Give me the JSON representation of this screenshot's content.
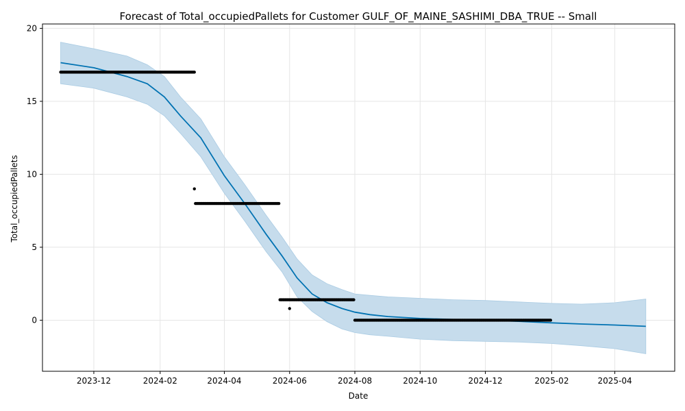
{
  "chart_data": {
    "type": "line",
    "title": "Forecast of Total_occupiedPallets for Customer GULF_OF_MAINE_SASHIMI_DBA_TRUE -- Small",
    "xlabel": "Date",
    "ylabel": "Total_occupiedPallets",
    "x_axis": "date",
    "xlim": [
      "2023-10-14",
      "2025-05-27"
    ],
    "ylim": [
      -3.5,
      20.3
    ],
    "x_ticks": [
      "2023-12-01",
      "2024-02-01",
      "2024-04-01",
      "2024-06-01",
      "2024-08-01",
      "2024-10-01",
      "2024-12-01",
      "2025-02-01",
      "2025-04-01"
    ],
    "x_tick_labels": [
      "2023-12",
      "2024-02",
      "2024-04",
      "2024-06",
      "2024-08",
      "2024-10",
      "2024-12",
      "2025-02",
      "2025-04"
    ],
    "y_ticks": [
      0,
      5,
      10,
      15,
      20
    ],
    "y_tick_labels": [
      "0",
      "5",
      "10",
      "15",
      "20"
    ],
    "grid": true,
    "legend": "none",
    "colors": {
      "forecast": "#0072B2",
      "interval": "#c6dcec",
      "interval_edge": "#a9cbe3",
      "actual": "#000000",
      "grid": "#e5e5e5"
    },
    "series": [
      {
        "kind": "forecast",
        "points": [
          [
            "2023-10-31",
            17.65
          ],
          [
            "2023-12-01",
            17.3
          ],
          [
            "2024-01-01",
            16.7
          ],
          [
            "2024-01-20",
            16.2
          ],
          [
            "2024-02-05",
            15.3
          ],
          [
            "2024-02-20",
            14.0
          ],
          [
            "2024-03-10",
            12.5
          ],
          [
            "2024-04-01",
            9.9
          ],
          [
            "2024-04-20",
            8.0
          ],
          [
            "2024-05-10",
            5.9
          ],
          [
            "2024-05-25",
            4.4
          ],
          [
            "2024-06-08",
            2.9
          ],
          [
            "2024-06-22",
            1.8
          ],
          [
            "2024-07-06",
            1.2
          ],
          [
            "2024-07-20",
            0.8
          ],
          [
            "2024-08-01",
            0.55
          ],
          [
            "2024-08-15",
            0.38
          ],
          [
            "2024-09-01",
            0.25
          ],
          [
            "2024-10-01",
            0.12
          ],
          [
            "2024-11-01",
            0.05
          ],
          [
            "2024-12-01",
            0.0
          ],
          [
            "2025-01-01",
            -0.08
          ],
          [
            "2025-02-01",
            -0.18
          ],
          [
            "2025-03-01",
            -0.26
          ],
          [
            "2025-04-01",
            -0.33
          ],
          [
            "2025-04-30",
            -0.42
          ]
        ]
      },
      {
        "kind": "uncertainty_interval",
        "points": [
          [
            "2023-10-31",
            16.2,
            19.05
          ],
          [
            "2023-12-01",
            15.9,
            18.6
          ],
          [
            "2024-01-01",
            15.3,
            18.1
          ],
          [
            "2024-01-20",
            14.8,
            17.5
          ],
          [
            "2024-02-05",
            14.0,
            16.7
          ],
          [
            "2024-02-20",
            12.8,
            15.3
          ],
          [
            "2024-03-10",
            11.2,
            13.8
          ],
          [
            "2024-04-01",
            8.7,
            11.2
          ],
          [
            "2024-04-20",
            6.8,
            9.3
          ],
          [
            "2024-05-10",
            4.7,
            7.2
          ],
          [
            "2024-05-25",
            3.3,
            5.7
          ],
          [
            "2024-06-08",
            1.6,
            4.2
          ],
          [
            "2024-06-22",
            0.6,
            3.1
          ],
          [
            "2024-07-06",
            -0.1,
            2.5
          ],
          [
            "2024-07-20",
            -0.6,
            2.1
          ],
          [
            "2024-08-01",
            -0.85,
            1.8
          ],
          [
            "2024-08-15",
            -1.0,
            1.7
          ],
          [
            "2024-09-01",
            -1.1,
            1.6
          ],
          [
            "2024-10-01",
            -1.3,
            1.5
          ],
          [
            "2024-11-01",
            -1.4,
            1.4
          ],
          [
            "2024-12-01",
            -1.45,
            1.35
          ],
          [
            "2025-01-01",
            -1.5,
            1.25
          ],
          [
            "2025-02-01",
            -1.6,
            1.15
          ],
          [
            "2025-03-01",
            -1.75,
            1.1
          ],
          [
            "2025-04-01",
            -1.95,
            1.2
          ],
          [
            "2025-04-30",
            -2.3,
            1.45
          ]
        ]
      },
      {
        "kind": "actual",
        "ranges": [
          {
            "start": "2023-10-31",
            "end": "2024-03-04",
            "y": 17.0
          },
          {
            "start": "2024-03-05",
            "end": "2024-05-22",
            "y": 8.0
          },
          {
            "start": "2024-05-23",
            "end": "2024-07-31",
            "y": 1.4
          },
          {
            "start": "2024-08-01",
            "end": "2025-01-31",
            "y": 0.0
          }
        ],
        "points": [
          [
            "2024-03-04",
            9.0
          ],
          [
            "2024-06-01",
            0.8
          ]
        ]
      }
    ]
  }
}
